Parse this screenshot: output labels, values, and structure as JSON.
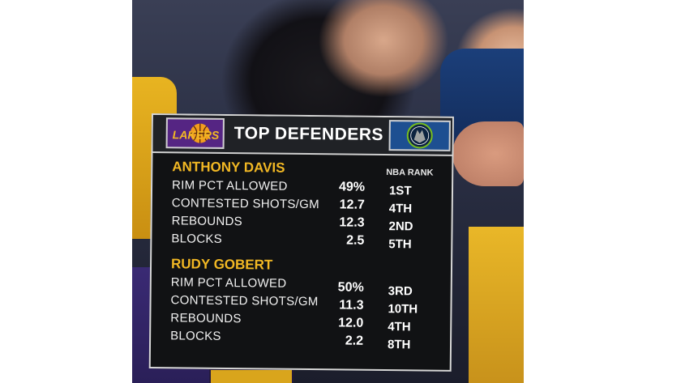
{
  "graphic": {
    "title": "TOP DEFENDERS",
    "left_logo_text": "LAKERS",
    "rank_header": "NBA RANK",
    "colors": {
      "gold": "#f2b824",
      "lakers_purple": "#552583",
      "wolves_blue": "#1d4f91",
      "panel": "#111214"
    }
  },
  "players": [
    {
      "name": "ANTHONY DAVIS",
      "stats": [
        {
          "label": "RIM PCT ALLOWED",
          "value": "49%",
          "rank": "1ST"
        },
        {
          "label": "CONTESTED SHOTS/GM",
          "value": "12.7",
          "rank": "4TH"
        },
        {
          "label": "REBOUNDS",
          "value": "12.3",
          "rank": "2ND"
        },
        {
          "label": "BLOCKS",
          "value": "2.5",
          "rank": "5TH"
        }
      ]
    },
    {
      "name": "RUDY GOBERT",
      "stats": [
        {
          "label": "RIM PCT ALLOWED",
          "value": "50%",
          "rank": "3RD"
        },
        {
          "label": "CONTESTED SHOTS/GM",
          "value": "11.3",
          "rank": "10TH"
        },
        {
          "label": "REBOUNDS",
          "value": "12.0",
          "rank": "4TH"
        },
        {
          "label": "BLOCKS",
          "value": "2.2",
          "rank": "8TH"
        }
      ]
    }
  ]
}
